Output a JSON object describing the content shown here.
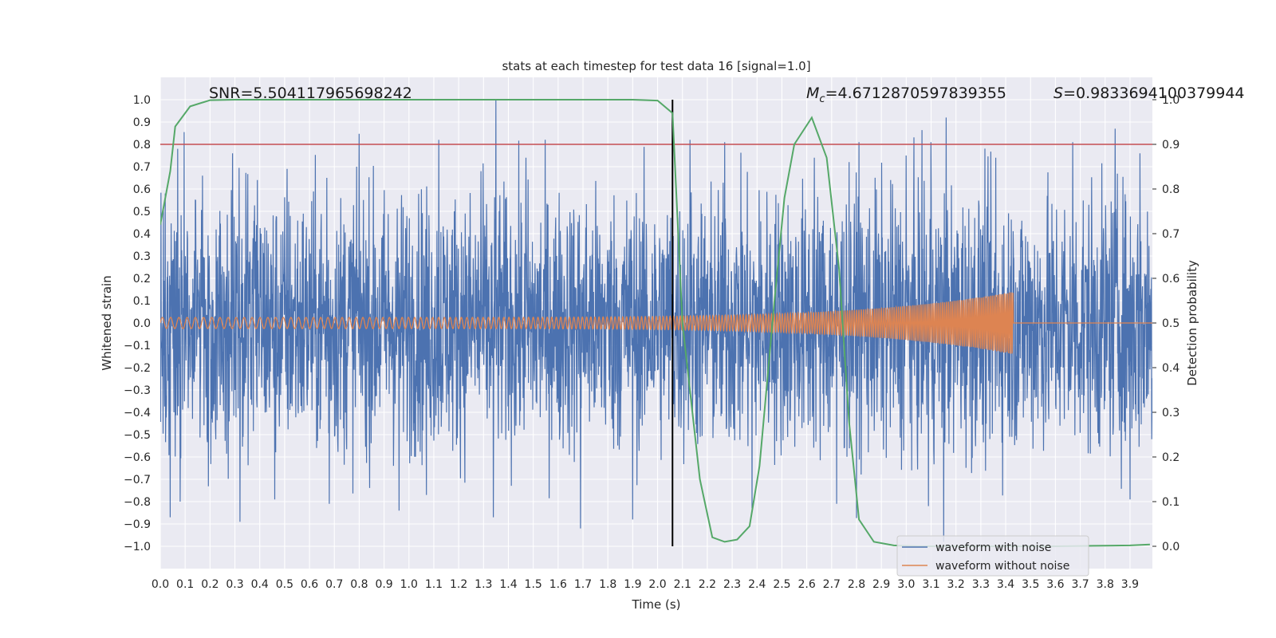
{
  "chart_data": {
    "type": "line",
    "title": "stats at each timestep for test data 16 [signal=1.0]",
    "xlabel": "Time (s)",
    "ylabel": "Whitened strain",
    "y2label": "Detection probability",
    "xlim": [
      0.0,
      3.99
    ],
    "ylim": [
      -1.1,
      1.1
    ],
    "y2lim": [
      -0.05,
      1.05
    ],
    "xticks": [
      "0.0",
      "0.1",
      "0.2",
      "0.3",
      "0.4",
      "0.5",
      "0.6",
      "0.7",
      "0.8",
      "0.9",
      "1.0",
      "1.1",
      "1.2",
      "1.3",
      "1.4",
      "1.5",
      "1.6",
      "1.7",
      "1.8",
      "1.9",
      "2.0",
      "2.1",
      "2.2",
      "2.3",
      "2.4",
      "2.5",
      "2.6",
      "2.7",
      "2.8",
      "2.9",
      "3.0",
      "3.1",
      "3.2",
      "3.3",
      "3.4",
      "3.5",
      "3.6",
      "3.7",
      "3.8",
      "3.9"
    ],
    "yticks": [
      "1.0",
      "0.9",
      "0.8",
      "0.7",
      "0.6",
      "0.5",
      "0.4",
      "0.3",
      "0.2",
      "0.1",
      "0.0",
      "−0.1",
      "−0.2",
      "−0.3",
      "−0.4",
      "−0.5",
      "−0.6",
      "−0.7",
      "−0.8",
      "−0.9",
      "−1.0"
    ],
    "y2ticks": [
      "1.0",
      "0.9",
      "0.8",
      "0.7",
      "0.6",
      "0.5",
      "0.4",
      "0.3",
      "0.2",
      "0.1",
      "0.0"
    ],
    "series": [
      {
        "name": "waveform with noise",
        "color": "#4c72b0",
        "spikes": [
          {
            "x": 0.02,
            "y": 0.58
          },
          {
            "x": 0.04,
            "y": -0.87
          },
          {
            "x": 0.07,
            "y": 0.78
          },
          {
            "x": 0.08,
            "y": -0.8
          },
          {
            "x": 0.17,
            "y": 0.66
          },
          {
            "x": 0.29,
            "y": 0.76
          },
          {
            "x": 0.32,
            "y": -0.89
          },
          {
            "x": 0.39,
            "y": 0.64
          },
          {
            "x": 0.46,
            "y": -0.79
          },
          {
            "x": 0.51,
            "y": 0.69
          },
          {
            "x": 0.67,
            "y": 0.65
          },
          {
            "x": 0.68,
            "y": -0.81
          },
          {
            "x": 0.79,
            "y": 0.7
          },
          {
            "x": 0.96,
            "y": -0.84
          },
          {
            "x": 1.07,
            "y": 0.82
          },
          {
            "x": 1.07,
            "y": -0.77
          },
          {
            "x": 1.12,
            "y": 0.82
          },
          {
            "x": 1.29,
            "y": 0.68
          },
          {
            "x": 1.35,
            "y": 1.0
          },
          {
            "x": 1.34,
            "y": -0.87
          },
          {
            "x": 1.47,
            "y": 0.74
          },
          {
            "x": 1.69,
            "y": 0.72
          },
          {
            "x": 1.69,
            "y": -0.92
          },
          {
            "x": 1.9,
            "y": 0.8
          },
          {
            "x": 1.9,
            "y": -0.88
          },
          {
            "x": 2.13,
            "y": 0.82
          },
          {
            "x": 2.27,
            "y": 0.81
          },
          {
            "x": 2.38,
            "y": -0.83
          },
          {
            "x": 2.63,
            "y": 0.74
          },
          {
            "x": 2.72,
            "y": -0.81
          },
          {
            "x": 2.81,
            "y": 0.81
          },
          {
            "x": 3.0,
            "y": 0.75
          },
          {
            "x": 3.09,
            "y": -0.82
          },
          {
            "x": 3.1,
            "y": 0.81
          },
          {
            "x": 3.16,
            "y": 0.92
          },
          {
            "x": 3.15,
            "y": -0.98
          },
          {
            "x": 3.36,
            "y": 0.74
          },
          {
            "x": 3.67,
            "y": 0.81
          },
          {
            "x": 3.84,
            "y": 0.87
          },
          {
            "x": 3.94,
            "y": 0.76
          },
          {
            "x": 3.9,
            "y": -0.79
          }
        ]
      },
      {
        "name": "waveform without noise",
        "color": "#dd8452",
        "chirp_start_amplitude": 0.025,
        "chirp_end_amplitude": 0.14,
        "chirp_end_time": 3.43
      },
      {
        "name": "detection probability",
        "color": "#55a868",
        "axis": "right",
        "x": [
          0.0,
          0.04,
          0.06,
          0.12,
          0.2,
          0.3,
          1.0,
          1.9,
          2.0,
          2.06,
          2.1,
          2.17,
          2.22,
          2.27,
          2.32,
          2.37,
          2.41,
          2.47,
          2.51,
          2.55,
          2.62,
          2.68,
          2.73,
          2.77,
          2.81,
          2.87,
          2.95,
          3.05,
          3.15,
          3.3,
          3.45,
          3.6,
          3.75,
          3.9,
          3.98
        ],
        "values": [
          0.72,
          0.84,
          0.94,
          0.985,
          0.999,
          1.0,
          1.0,
          1.0,
          0.998,
          0.97,
          0.5,
          0.15,
          0.02,
          0.01,
          0.015,
          0.045,
          0.18,
          0.55,
          0.78,
          0.9,
          0.96,
          0.87,
          0.62,
          0.28,
          0.06,
          0.01,
          0.002,
          0.0,
          0.0,
          0.0,
          0.0,
          0.0,
          0.001,
          0.002,
          0.004
        ]
      }
    ],
    "hlines": [
      {
        "y": 0.8,
        "color": "#c44e52"
      }
    ],
    "vlines": [
      {
        "x": 2.06,
        "color": "#000000"
      }
    ],
    "annotations": {
      "snr": "SNR=5.504117965698242",
      "mc_symbol": "M",
      "mc_sub": "c",
      "mc_value": "=4.6712870597839355",
      "s_symbol": "S",
      "s_value": "=0.9833694100379944"
    },
    "legend": {
      "position": "lower-right",
      "entries": [
        "waveform with noise",
        "waveform without noise"
      ]
    },
    "grid": true
  }
}
